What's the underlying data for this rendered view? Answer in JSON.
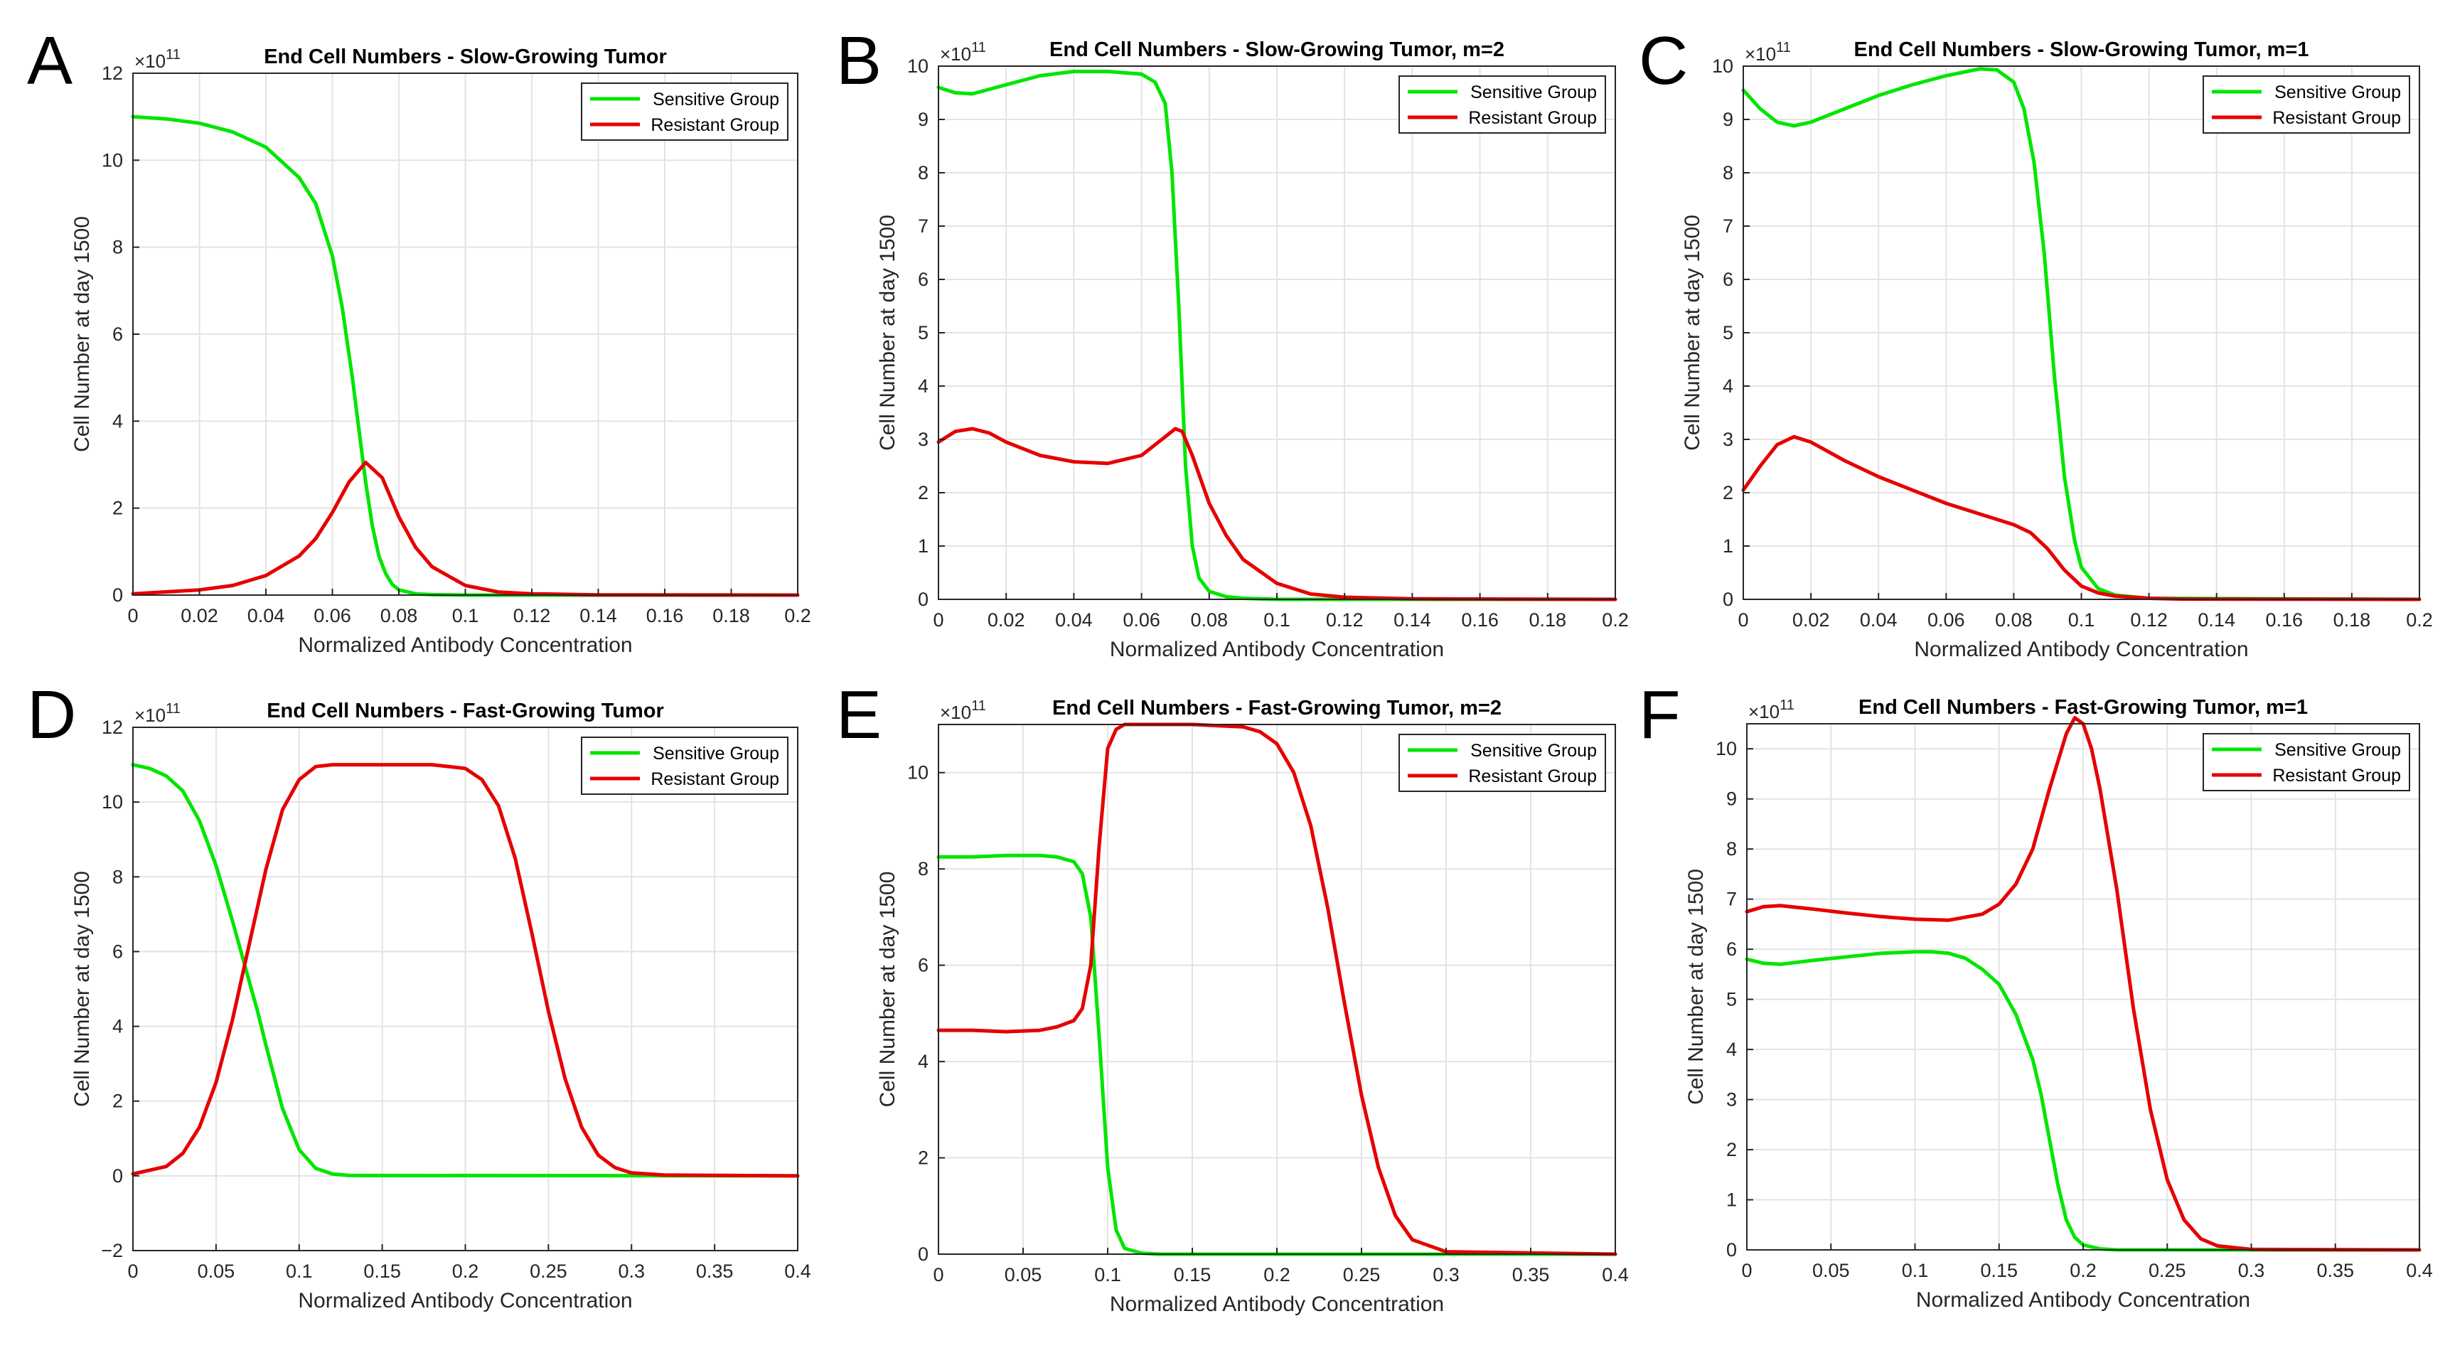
{
  "figure": {
    "panel_letters": [
      "A",
      "B",
      "C",
      "D",
      "E",
      "F"
    ]
  },
  "chart_data": [
    {
      "type": "line",
      "letter": "A",
      "title": "End Cell Numbers - Slow-Growing Tumor",
      "xlabel": "Normalized Antibody Concentration",
      "ylabel": "Cell Number at day 1500",
      "exponent_label": "×10",
      "exponent": "11",
      "xlim": [
        0,
        0.2
      ],
      "ylim": [
        0,
        12
      ],
      "xticks": [
        0,
        0.02,
        0.04,
        0.06,
        0.08,
        0.1,
        0.12,
        0.14,
        0.16,
        0.18,
        0.2
      ],
      "xtick_labels": [
        "0",
        "0.02",
        "0.04",
        "0.06",
        "0.08",
        "0.1",
        "0.12",
        "0.14",
        "0.16",
        "0.18",
        "0.2"
      ],
      "yticks": [
        0,
        2,
        4,
        6,
        8,
        10,
        12
      ],
      "ytick_labels": [
        "0",
        "2",
        "4",
        "6",
        "8",
        "10",
        "12"
      ],
      "grid": true,
      "legend_position": "top-right",
      "series": [
        {
          "name": "Sensitive Group",
          "color": "#00e600",
          "x": [
            0,
            0.01,
            0.02,
            0.03,
            0.04,
            0.05,
            0.055,
            0.06,
            0.063,
            0.066,
            0.068,
            0.07,
            0.072,
            0.074,
            0.076,
            0.078,
            0.08,
            0.085,
            0.09,
            0.1,
            0.12,
            0.2
          ],
          "y": [
            11,
            10.95,
            10.85,
            10.65,
            10.3,
            9.6,
            9.0,
            7.8,
            6.6,
            5.0,
            3.8,
            2.6,
            1.6,
            0.9,
            0.5,
            0.25,
            0.12,
            0.03,
            0.01,
            0,
            0,
            0
          ]
        },
        {
          "name": "Resistant Group",
          "color": "#e60000",
          "x": [
            0,
            0.02,
            0.03,
            0.04,
            0.05,
            0.055,
            0.06,
            0.065,
            0.07,
            0.075,
            0.08,
            0.085,
            0.09,
            0.1,
            0.11,
            0.12,
            0.14,
            0.2
          ],
          "y": [
            0.03,
            0.12,
            0.22,
            0.45,
            0.9,
            1.3,
            1.9,
            2.6,
            3.05,
            2.7,
            1.8,
            1.1,
            0.65,
            0.22,
            0.07,
            0.03,
            0.005,
            0
          ]
        }
      ]
    },
    {
      "type": "line",
      "letter": "B",
      "title": "End Cell Numbers - Slow-Growing Tumor, m=2",
      "xlabel": "Normalized Antibody Concentration",
      "ylabel": "Cell Number at day 1500",
      "exponent_label": "×10",
      "exponent": "11",
      "xlim": [
        0,
        0.2
      ],
      "ylim": [
        0,
        10
      ],
      "xticks": [
        0,
        0.02,
        0.04,
        0.06,
        0.08,
        0.1,
        0.12,
        0.14,
        0.16,
        0.18,
        0.2
      ],
      "xtick_labels": [
        "0",
        "0.02",
        "0.04",
        "0.06",
        "0.08",
        "0.1",
        "0.12",
        "0.14",
        "0.16",
        "0.18",
        "0.2"
      ],
      "yticks": [
        0,
        1,
        2,
        3,
        4,
        5,
        6,
        7,
        8,
        9,
        10
      ],
      "ytick_labels": [
        "0",
        "1",
        "2",
        "3",
        "4",
        "5",
        "6",
        "7",
        "8",
        "9",
        "10"
      ],
      "grid": true,
      "legend_position": "top-right",
      "series": [
        {
          "name": "Sensitive Group",
          "color": "#00e600",
          "x": [
            0,
            0.005,
            0.01,
            0.02,
            0.03,
            0.04,
            0.05,
            0.06,
            0.064,
            0.067,
            0.069,
            0.071,
            0.073,
            0.075,
            0.077,
            0.08,
            0.085,
            0.09,
            0.1,
            0.2
          ],
          "y": [
            9.6,
            9.5,
            9.48,
            9.65,
            9.82,
            9.9,
            9.9,
            9.85,
            9.7,
            9.3,
            8.0,
            5.5,
            2.5,
            1.0,
            0.4,
            0.15,
            0.05,
            0.02,
            0,
            0
          ]
        },
        {
          "name": "Resistant Group",
          "color": "#e60000",
          "x": [
            0,
            0.005,
            0.01,
            0.015,
            0.02,
            0.03,
            0.04,
            0.05,
            0.06,
            0.065,
            0.07,
            0.072,
            0.075,
            0.08,
            0.085,
            0.09,
            0.1,
            0.11,
            0.12,
            0.14,
            0.2
          ],
          "y": [
            2.95,
            3.15,
            3.2,
            3.12,
            2.95,
            2.7,
            2.58,
            2.55,
            2.7,
            2.95,
            3.2,
            3.15,
            2.7,
            1.8,
            1.2,
            0.75,
            0.3,
            0.1,
            0.04,
            0.01,
            0
          ]
        }
      ]
    },
    {
      "type": "line",
      "letter": "C",
      "title": "End Cell Numbers - Slow-Growing Tumor, m=1",
      "xlabel": "Normalized Antibody Concentration",
      "ylabel": "Cell Number at day 1500",
      "exponent_label": "×10",
      "exponent": "11",
      "xlim": [
        0,
        0.2
      ],
      "ylim": [
        0,
        10
      ],
      "xticks": [
        0,
        0.02,
        0.04,
        0.06,
        0.08,
        0.1,
        0.12,
        0.14,
        0.16,
        0.18,
        0.2
      ],
      "xtick_labels": [
        "0",
        "0.02",
        "0.04",
        "0.06",
        "0.08",
        "0.1",
        "0.12",
        "0.14",
        "0.16",
        "0.18",
        "0.2"
      ],
      "yticks": [
        0,
        1,
        2,
        3,
        4,
        5,
        6,
        7,
        8,
        9,
        10
      ],
      "ytick_labels": [
        "0",
        "1",
        "2",
        "3",
        "4",
        "5",
        "6",
        "7",
        "8",
        "9",
        "10"
      ],
      "grid": true,
      "legend_position": "top-right",
      "series": [
        {
          "name": "Sensitive Group",
          "color": "#00e600",
          "x": [
            0,
            0.005,
            0.01,
            0.015,
            0.02,
            0.03,
            0.04,
            0.05,
            0.06,
            0.07,
            0.075,
            0.08,
            0.083,
            0.086,
            0.089,
            0.092,
            0.095,
            0.098,
            0.1,
            0.105,
            0.11,
            0.12,
            0.2
          ],
          "y": [
            9.55,
            9.2,
            8.95,
            8.88,
            8.95,
            9.2,
            9.45,
            9.65,
            9.82,
            9.95,
            9.93,
            9.7,
            9.2,
            8.2,
            6.5,
            4.2,
            2.3,
            1.1,
            0.6,
            0.2,
            0.08,
            0.02,
            0
          ]
        },
        {
          "name": "Resistant Group",
          "color": "#e60000",
          "x": [
            0,
            0.005,
            0.01,
            0.015,
            0.02,
            0.03,
            0.04,
            0.05,
            0.06,
            0.07,
            0.08,
            0.085,
            0.09,
            0.095,
            0.1,
            0.105,
            0.11,
            0.12,
            0.13,
            0.2
          ],
          "y": [
            2.05,
            2.5,
            2.9,
            3.05,
            2.95,
            2.6,
            2.3,
            2.05,
            1.8,
            1.6,
            1.4,
            1.25,
            0.95,
            0.55,
            0.25,
            0.12,
            0.06,
            0.02,
            0.005,
            0
          ]
        }
      ]
    },
    {
      "type": "line",
      "letter": "D",
      "title": "End Cell Numbers - Fast-Growing Tumor",
      "xlabel": "Normalized Antibody Concentration",
      "ylabel": "Cell Number at day 1500",
      "exponent_label": "×10",
      "exponent": "11",
      "xlim": [
        0,
        0.4
      ],
      "ylim": [
        -2,
        12
      ],
      "xticks": [
        0,
        0.05,
        0.1,
        0.15,
        0.2,
        0.25,
        0.3,
        0.35,
        0.4
      ],
      "xtick_labels": [
        "0",
        "0.05",
        "0.1",
        "0.15",
        "0.2",
        "0.25",
        "0.3",
        "0.35",
        "0.4"
      ],
      "yticks": [
        -2,
        0,
        2,
        4,
        6,
        8,
        10,
        12
      ],
      "ytick_labels": [
        "−2",
        "0",
        "2",
        "4",
        "6",
        "8",
        "10",
        "12"
      ],
      "grid": true,
      "legend_position": "top-right",
      "series": [
        {
          "name": "Sensitive Group",
          "color": "#00e600",
          "x": [
            0,
            0.01,
            0.02,
            0.03,
            0.04,
            0.05,
            0.06,
            0.07,
            0.075,
            0.08,
            0.09,
            0.1,
            0.11,
            0.12,
            0.13,
            0.4
          ],
          "y": [
            11,
            10.9,
            10.7,
            10.3,
            9.5,
            8.3,
            6.8,
            5.2,
            4.4,
            3.5,
            1.8,
            0.7,
            0.2,
            0.05,
            0.01,
            0
          ]
        },
        {
          "name": "Resistant Group",
          "color": "#e60000",
          "x": [
            0,
            0.02,
            0.03,
            0.04,
            0.05,
            0.06,
            0.07,
            0.08,
            0.09,
            0.1,
            0.11,
            0.12,
            0.15,
            0.18,
            0.2,
            0.21,
            0.22,
            0.23,
            0.24,
            0.25,
            0.26,
            0.27,
            0.28,
            0.29,
            0.3,
            0.32,
            0.4
          ],
          "y": [
            0.05,
            0.25,
            0.6,
            1.3,
            2.5,
            4.2,
            6.2,
            8.2,
            9.8,
            10.6,
            10.95,
            11,
            11,
            11,
            10.9,
            10.6,
            9.9,
            8.5,
            6.5,
            4.4,
            2.6,
            1.3,
            0.55,
            0.22,
            0.08,
            0.02,
            0
          ]
        }
      ]
    },
    {
      "type": "line",
      "letter": "E",
      "title": "End Cell Numbers - Fast-Growing Tumor, m=2",
      "xlabel": "Normalized Antibody Concentration",
      "ylabel": "Cell Number at day 1500",
      "exponent_label": "×10",
      "exponent": "11",
      "xlim": [
        0,
        0.4
      ],
      "ylim": [
        0,
        11
      ],
      "xticks": [
        0,
        0.05,
        0.1,
        0.15,
        0.2,
        0.25,
        0.3,
        0.35,
        0.4
      ],
      "xtick_labels": [
        "0",
        "0.05",
        "0.1",
        "0.15",
        "0.2",
        "0.25",
        "0.3",
        "0.35",
        "0.4"
      ],
      "yticks": [
        0,
        2,
        4,
        6,
        8,
        10
      ],
      "ytick_labels": [
        "0",
        "2",
        "4",
        "6",
        "8",
        "10"
      ],
      "grid": true,
      "legend_position": "top-right",
      "series": [
        {
          "name": "Sensitive Group",
          "color": "#00e600",
          "x": [
            0,
            0.02,
            0.04,
            0.06,
            0.07,
            0.08,
            0.085,
            0.09,
            0.095,
            0.1,
            0.105,
            0.11,
            0.12,
            0.13,
            0.4
          ],
          "y": [
            8.25,
            8.25,
            8.28,
            8.28,
            8.25,
            8.15,
            7.9,
            7.0,
            4.5,
            1.8,
            0.5,
            0.12,
            0.02,
            0,
            0
          ]
        },
        {
          "name": "Resistant Group",
          "color": "#e60000",
          "x": [
            0,
            0.02,
            0.04,
            0.06,
            0.07,
            0.08,
            0.085,
            0.09,
            0.095,
            0.1,
            0.105,
            0.11,
            0.12,
            0.15,
            0.18,
            0.19,
            0.2,
            0.21,
            0.22,
            0.23,
            0.24,
            0.25,
            0.26,
            0.27,
            0.28,
            0.3,
            0.4
          ],
          "y": [
            4.65,
            4.65,
            4.62,
            4.65,
            4.72,
            4.85,
            5.1,
            6.0,
            8.5,
            10.5,
            10.9,
            11,
            11,
            11,
            10.95,
            10.85,
            10.6,
            10.0,
            8.9,
            7.2,
            5.2,
            3.3,
            1.8,
            0.8,
            0.3,
            0.05,
            0
          ]
        }
      ]
    },
    {
      "type": "line",
      "letter": "F",
      "title": "End Cell Numbers - Fast-Growing Tumor, m=1",
      "xlabel": "Normalized Antibody Concentration",
      "ylabel": "Cell Number at day 1500",
      "exponent_label": "×10",
      "exponent": "11",
      "xlim": [
        0,
        0.4
      ],
      "ylim": [
        0,
        10.5
      ],
      "xticks": [
        0,
        0.05,
        0.1,
        0.15,
        0.2,
        0.25,
        0.3,
        0.35,
        0.4
      ],
      "xtick_labels": [
        "0",
        "0.05",
        "0.1",
        "0.15",
        "0.2",
        "0.25",
        "0.3",
        "0.35",
        "0.4"
      ],
      "yticks": [
        0,
        1,
        2,
        3,
        4,
        5,
        6,
        7,
        8,
        9,
        10
      ],
      "ytick_labels": [
        "0",
        "1",
        "2",
        "3",
        "4",
        "5",
        "6",
        "7",
        "8",
        "9",
        "10"
      ],
      "grid": true,
      "legend_position": "top-right",
      "series": [
        {
          "name": "Sensitive Group",
          "color": "#00e600",
          "x": [
            0,
            0.01,
            0.02,
            0.04,
            0.06,
            0.08,
            0.1,
            0.11,
            0.12,
            0.13,
            0.14,
            0.15,
            0.16,
            0.17,
            0.175,
            0.18,
            0.185,
            0.19,
            0.195,
            0.2,
            0.21,
            0.22,
            0.4
          ],
          "y": [
            5.8,
            5.72,
            5.7,
            5.78,
            5.85,
            5.92,
            5.95,
            5.95,
            5.92,
            5.82,
            5.6,
            5.3,
            4.7,
            3.8,
            3.1,
            2.2,
            1.3,
            0.6,
            0.25,
            0.1,
            0.02,
            0,
            0
          ]
        },
        {
          "name": "Resistant Group",
          "color": "#e60000",
          "x": [
            0,
            0.01,
            0.02,
            0.04,
            0.06,
            0.08,
            0.1,
            0.12,
            0.14,
            0.15,
            0.16,
            0.17,
            0.18,
            0.19,
            0.195,
            0.2,
            0.205,
            0.21,
            0.22,
            0.23,
            0.24,
            0.25,
            0.26,
            0.27,
            0.28,
            0.3,
            0.4
          ],
          "y": [
            6.75,
            6.85,
            6.87,
            6.8,
            6.72,
            6.65,
            6.6,
            6.58,
            6.7,
            6.9,
            7.3,
            8.0,
            9.2,
            10.3,
            10.62,
            10.5,
            10.0,
            9.2,
            7.2,
            4.8,
            2.8,
            1.4,
            0.6,
            0.22,
            0.08,
            0.01,
            0
          ]
        }
      ]
    }
  ]
}
